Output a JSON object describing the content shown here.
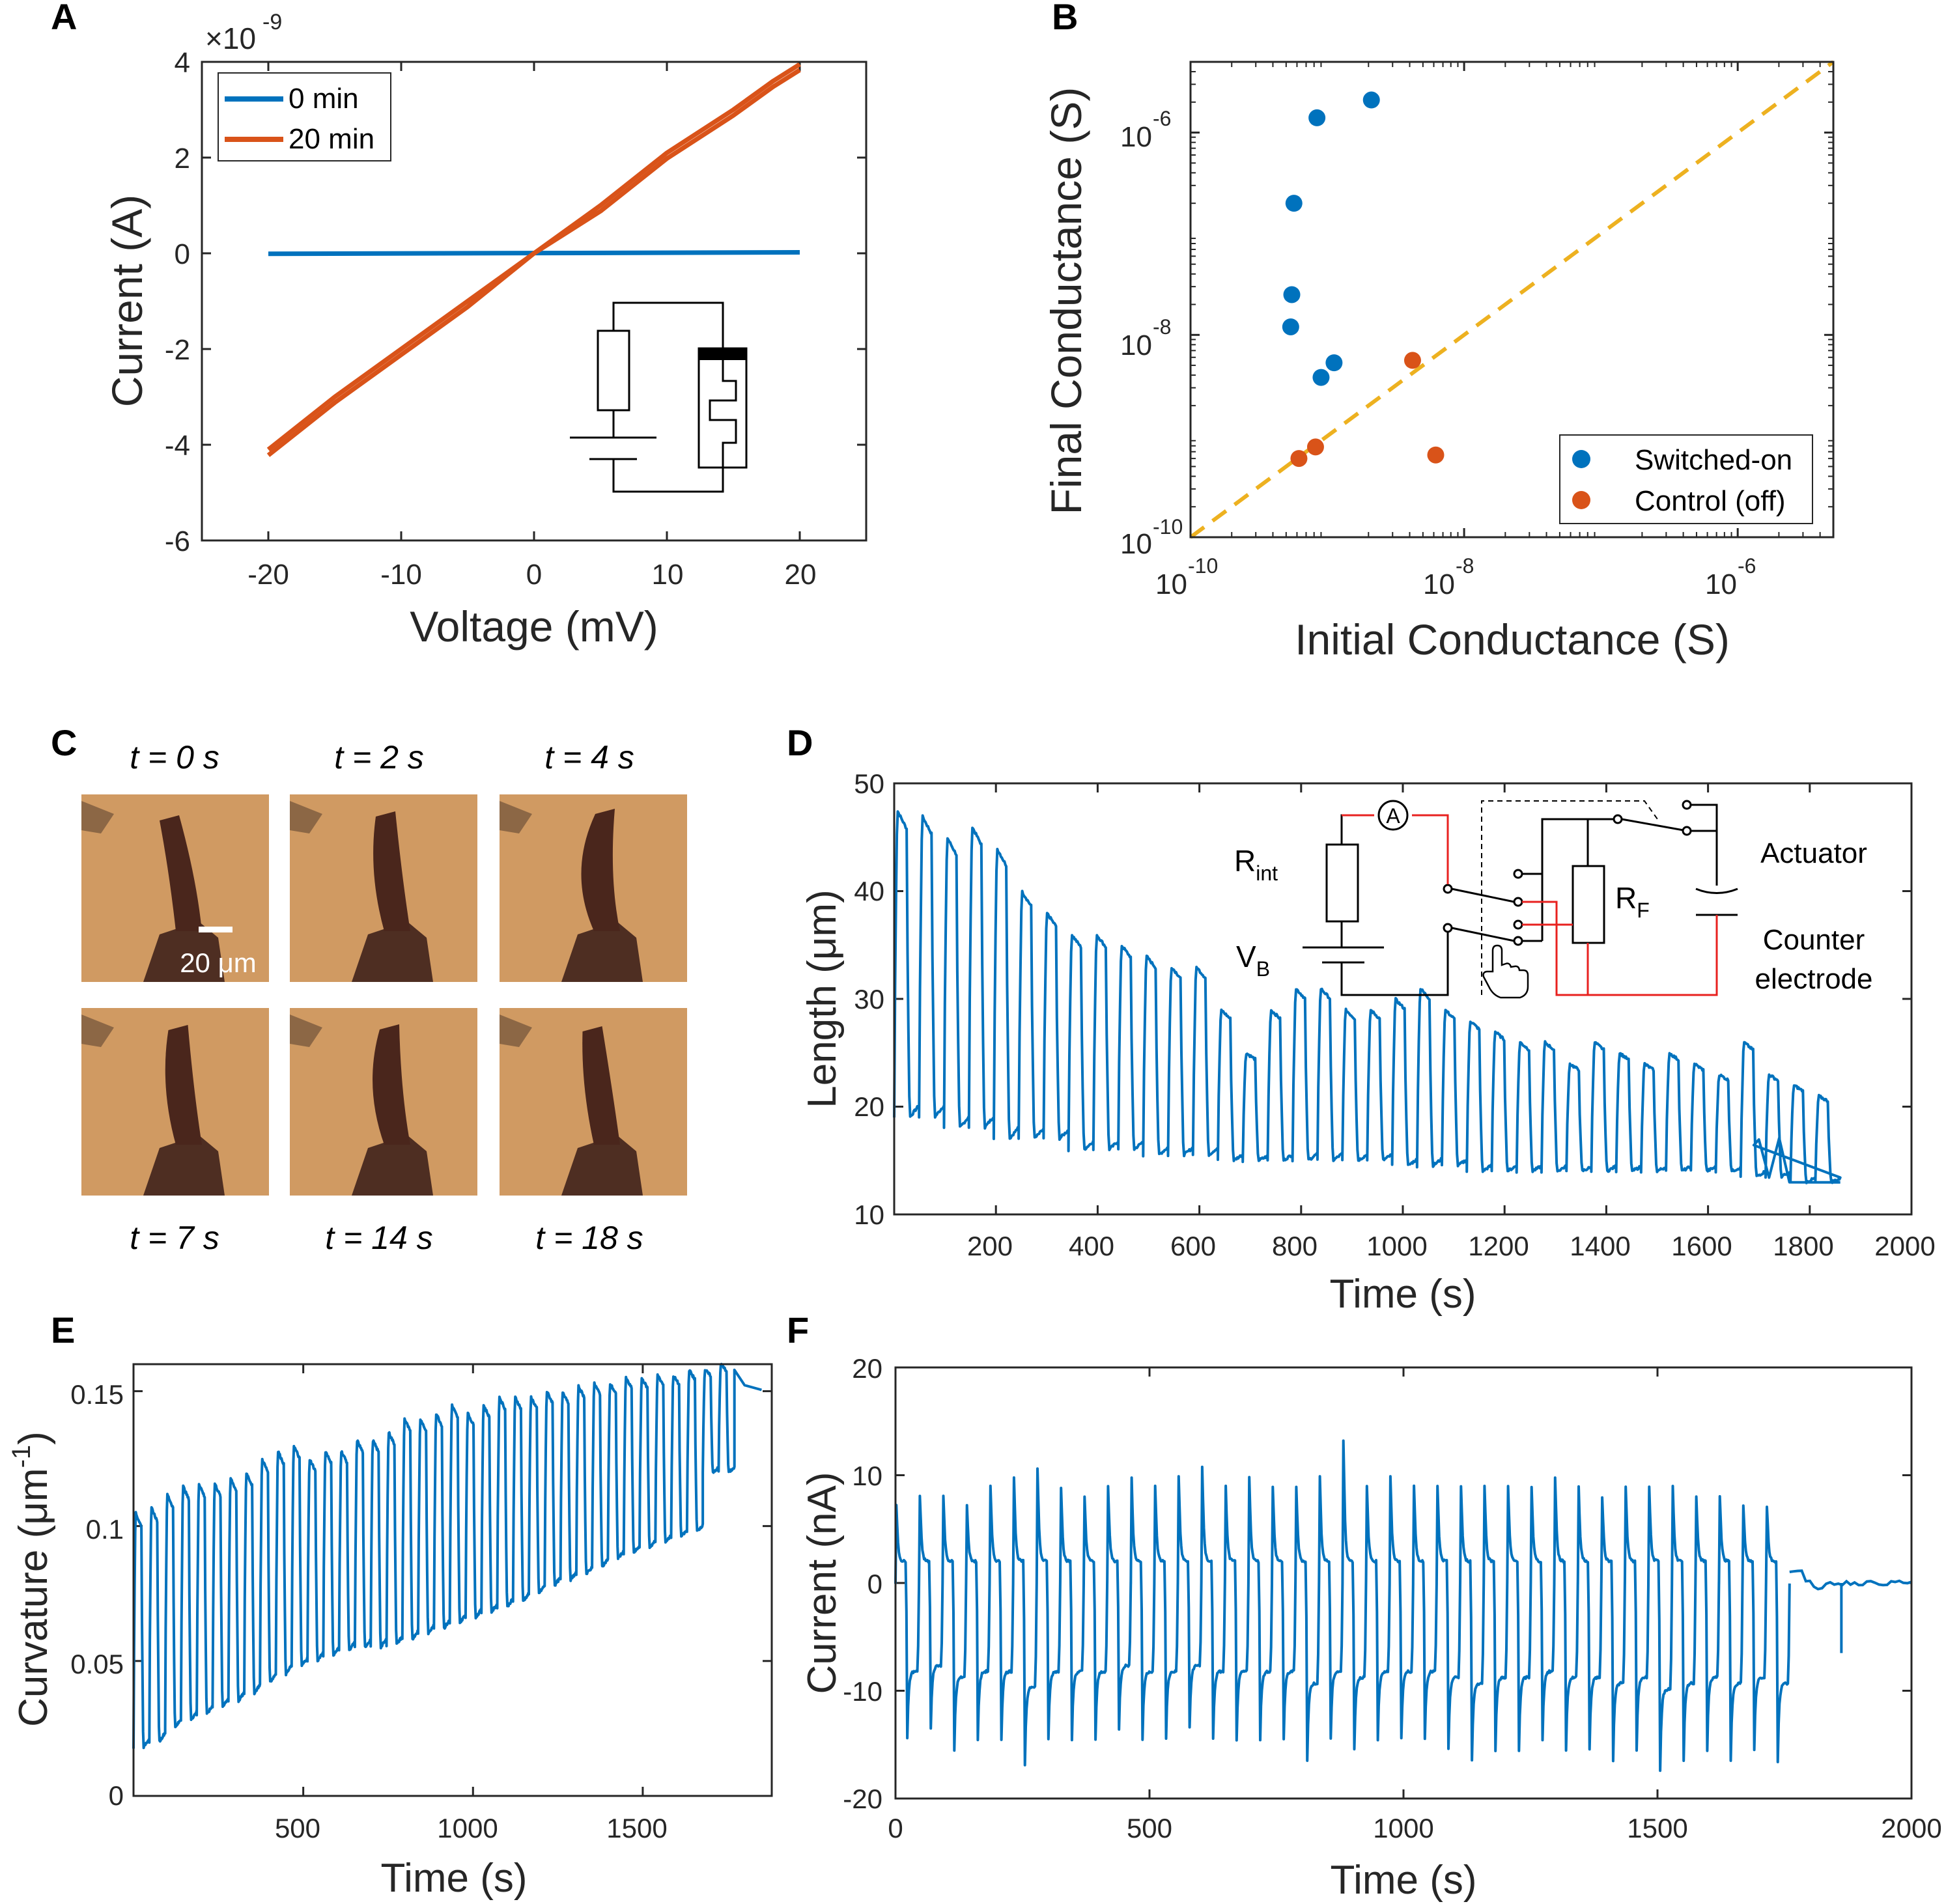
{
  "panels": {
    "A": {
      "letter": "A",
      "xlabel": "Voltage (mV)",
      "ylabel": "Current (A)",
      "exponent_prefix": "×10",
      "exponent_power": "-9",
      "xticks": [
        "-20",
        "-10",
        "0",
        "10",
        "20"
      ],
      "yticks": [
        "4",
        "2",
        "0",
        "-2",
        "-4",
        "-6"
      ],
      "legend": [
        "0 min",
        "20 min"
      ]
    },
    "B": {
      "letter": "B",
      "xlabel": "Initial Conductance (S)",
      "ylabel": "Final Conductance (S)",
      "xticks": [
        {
          "base": "10",
          "exp": "-10"
        },
        {
          "base": "10",
          "exp": "-8"
        },
        {
          "base": "10",
          "exp": "-6"
        }
      ],
      "yticks": [
        {
          "base": "10",
          "exp": "-10"
        },
        {
          "base": "10",
          "exp": "-8"
        },
        {
          "base": "10",
          "exp": "-6"
        }
      ],
      "legend": [
        "Switched-on",
        "Control (off)"
      ]
    },
    "C": {
      "letter": "C",
      "scale_bar": "20 μm",
      "frames": [
        {
          "time": "t = 0 s"
        },
        {
          "time": "t = 2 s"
        },
        {
          "time": "t = 4 s"
        },
        {
          "time": "t = 7 s"
        },
        {
          "time": "t = 14 s"
        },
        {
          "time": "t = 18 s"
        }
      ]
    },
    "D": {
      "letter": "D",
      "xlabel": "Time (s)",
      "ylabel": "Length (μm)",
      "xticks": [
        "200",
        "400",
        "600",
        "800",
        "1000",
        "1200",
        "1400",
        "1600",
        "1800",
        "2000"
      ],
      "yticks": [
        "50",
        "40",
        "30",
        "20",
        "10"
      ],
      "circuit": {
        "r_int": "R",
        "r_int_sub": "int",
        "v_b": "V",
        "v_b_sub": "B",
        "r_f": "R",
        "r_f_sub": "F",
        "ammeter": "A",
        "actuator": "Actuator",
        "counter_1": "Counter",
        "counter_2": "electrode"
      }
    },
    "E": {
      "letter": "E",
      "xlabel": "Time (s)",
      "ylabel_main": "Curvature (μm",
      "ylabel_exp": "-1",
      "ylabel_close": ")",
      "xticks": [
        "500",
        "1000",
        "1500"
      ],
      "yticks": [
        "0.15",
        "0.1",
        "0.05",
        "0"
      ]
    },
    "F": {
      "letter": "F",
      "xlabel": "Time (s)",
      "ylabel": "Current (nA)",
      "xticks": [
        "0",
        "500",
        "1000",
        "1500",
        "2000"
      ],
      "yticks": [
        "20",
        "10",
        "0",
        "-10",
        "-20"
      ]
    }
  },
  "colors": {
    "blue": "#0072bd",
    "orange": "#d95319",
    "yellow": "#edb120",
    "red": "#e8211f",
    "photo_bg": "#d09a62",
    "actuator": "#4a261c"
  },
  "chart_data": [
    {
      "panel": "A",
      "type": "line",
      "xlabel": "Voltage (mV)",
      "ylabel": "Current (A)",
      "xlim": [
        -25,
        25
      ],
      "ylim": [
        -6,
        4
      ],
      "y_scale": "×10^-9",
      "series": [
        {
          "name": "0 min",
          "color": "#0072bd",
          "x": [
            -20,
            20
          ],
          "y": [
            -0.01,
            0.02
          ]
        },
        {
          "name": "20 min",
          "color": "#d95319",
          "x": [
            -20,
            -15,
            -10,
            -5,
            0,
            5,
            10,
            15,
            18,
            20
          ],
          "y": [
            -4.1,
            -3.0,
            -2.0,
            -1.0,
            0.0,
            1.0,
            2.1,
            3.0,
            3.6,
            3.95
          ]
        }
      ]
    },
    {
      "panel": "B",
      "type": "scatter",
      "xlabel": "Initial Conductance (S)",
      "ylabel": "Final Conductance (S)",
      "xscale": "log",
      "yscale": "log",
      "xlim": [
        1e-10,
        5e-06
      ],
      "ylim": [
        1e-10,
        5e-06
      ],
      "series": [
        {
          "name": "Switched-on",
          "color": "#0072bd",
          "x": [
            5.4e-10,
            5.5e-10,
            5.7e-10,
            8.4e-10,
            9e-10,
            1.12e-09,
            2.1e-09
          ],
          "y": [
            1.2e-08,
            2.5e-08,
            2e-07,
            1.4e-06,
            3.8e-09,
            5.3e-09,
            2.1e-06
          ]
        },
        {
          "name": "Control (off)",
          "color": "#d95319",
          "x": [
            6.2e-10,
            8.2e-10,
            4.2e-09,
            6.2e-09
          ],
          "y": [
            6e-10,
            7.8e-10,
            5.6e-09,
            6.5e-10
          ]
        }
      ],
      "reference_line": {
        "style": "dashed",
        "color": "#edb120",
        "x": [
          1e-10,
          5e-06
        ],
        "y": [
          1e-10,
          5e-06
        ]
      }
    },
    {
      "panel": "D",
      "type": "line",
      "xlabel": "Time (s)",
      "ylabel": "Length (μm)",
      "xlim": [
        0,
        2000
      ],
      "ylim": [
        10,
        50
      ],
      "series": [
        {
          "color": "#0072bd",
          "cycles": 38,
          "t_start": 0,
          "t_end": 1860,
          "peaks": [
            47.5,
            47,
            45,
            46,
            44,
            40,
            38,
            36,
            36,
            35,
            34,
            33,
            33,
            29,
            25,
            29,
            31,
            31,
            29,
            29,
            30,
            31,
            29,
            28,
            27,
            26,
            26,
            24,
            26,
            25,
            24,
            25,
            24,
            23,
            26,
            23,
            22,
            21
          ],
          "troughs": [
            19,
            19,
            18,
            18,
            17,
            17,
            17,
            16,
            16,
            16,
            15.5,
            15.5,
            15.5,
            15,
            15,
            15,
            15,
            15,
            15,
            15,
            14.5,
            14.5,
            14.5,
            14,
            14,
            14,
            14,
            14,
            14,
            14,
            14,
            14,
            14,
            14,
            13.5,
            13.5,
            13,
            13
          ],
          "tail": [
            [
              1690,
              16.5
            ],
            [
              1700,
              17
            ],
            [
              1720,
              13.5
            ],
            [
              1740,
              17
            ],
            [
              1760,
              13
            ],
            [
              1860,
              13
            ]
          ]
        }
      ]
    },
    {
      "panel": "E",
      "type": "line",
      "xlabel": "Time (s)",
      "ylabel": "Curvature (μm^-1)",
      "xlim": [
        0,
        1880
      ],
      "ylim": [
        0,
        0.16
      ],
      "series": [
        {
          "color": "#0072bd",
          "cycles": 38,
          "t_start": 0,
          "t_end": 1770,
          "peaks": [
            0.105,
            0.107,
            0.112,
            0.115,
            0.116,
            0.116,
            0.118,
            0.12,
            0.125,
            0.128,
            0.13,
            0.125,
            0.128,
            0.128,
            0.132,
            0.132,
            0.135,
            0.14,
            0.14,
            0.142,
            0.145,
            0.142,
            0.145,
            0.148,
            0.148,
            0.148,
            0.15,
            0.15,
            0.152,
            0.153,
            0.153,
            0.155,
            0.155,
            0.156,
            0.156,
            0.158,
            0.158,
            0.16
          ],
          "troughs": [
            0.018,
            0.02,
            0.025,
            0.028,
            0.03,
            0.033,
            0.035,
            0.038,
            0.042,
            0.045,
            0.048,
            0.05,
            0.052,
            0.054,
            0.055,
            0.055,
            0.056,
            0.058,
            0.06,
            0.062,
            0.064,
            0.066,
            0.068,
            0.07,
            0.072,
            0.075,
            0.078,
            0.08,
            0.082,
            0.085,
            0.088,
            0.09,
            0.092,
            0.094,
            0.096,
            0.098,
            0.12,
            0.12
          ],
          "tail": [
            [
              1770,
              0.158
            ],
            [
              1800,
              0.152
            ],
            [
              1850,
              0.15
            ]
          ]
        }
      ]
    },
    {
      "panel": "F",
      "type": "line",
      "xlabel": "Time (s)",
      "ylabel": "Current (nA)",
      "xlim": [
        0,
        2000
      ],
      "ylim": [
        -20,
        20
      ],
      "series": [
        {
          "color": "#0072bd",
          "cycles": 38,
          "t_start": 0,
          "t_end": 1760,
          "peaks": [
            8,
            9,
            9,
            8,
            10,
            11,
            12,
            10,
            9,
            10,
            11,
            10,
            11,
            12,
            10,
            11,
            10,
            10,
            11,
            14.8,
            10,
            11,
            10,
            10,
            10,
            10,
            10,
            10,
            11,
            10,
            9,
            10,
            10,
            10,
            9,
            9,
            8,
            8
          ],
          "troughs": [
            -14,
            -13,
            -15,
            -14,
            -14,
            -16.5,
            -14,
            -14,
            -14,
            -13,
            -14,
            -14,
            -13,
            -14,
            -14,
            -14,
            -14,
            -16,
            -14,
            -15,
            -14,
            -14,
            -14,
            -15,
            -16,
            -15,
            -15,
            -14,
            -15,
            -15,
            -16,
            -15,
            -17,
            -16,
            -15,
            -16,
            -15,
            -16
          ]
        }
      ]
    }
  ]
}
